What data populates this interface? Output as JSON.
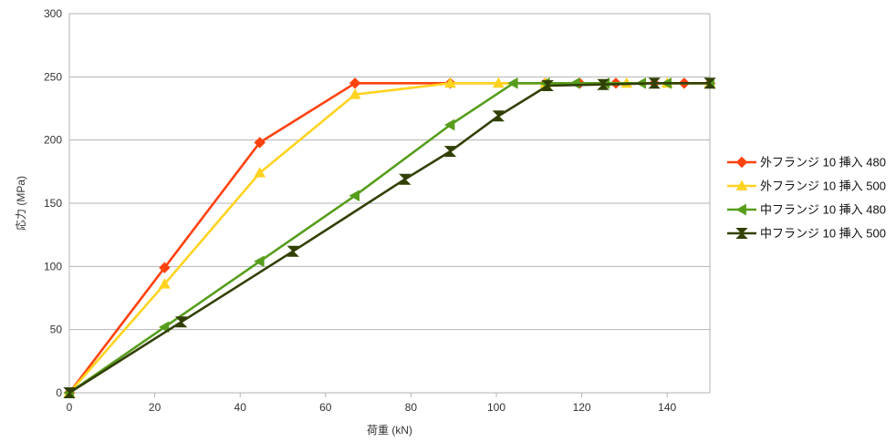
{
  "chart_data": {
    "type": "line",
    "xlabel": "荷重 (kN)",
    "ylabel": "応力 (MPa)",
    "xlim": [
      0,
      150
    ],
    "ylim": [
      0,
      300
    ],
    "x_ticks": [
      0,
      20,
      40,
      60,
      80,
      100,
      120,
      140
    ],
    "y_ticks": [
      0,
      50,
      100,
      150,
      200,
      250,
      300
    ],
    "grid": "horizontal",
    "legend_position": "right",
    "series": [
      {
        "name": "外フランジ 10 挿入 480",
        "color": "#ff420e",
        "marker": "diamond",
        "points": [
          [
            0,
            0
          ],
          [
            22.3,
            99
          ],
          [
            44.6,
            198
          ],
          [
            66.9,
            245
          ],
          [
            89.2,
            245
          ],
          [
            111.5,
            245
          ],
          [
            119.5,
            245
          ],
          [
            128,
            245
          ],
          [
            137,
            245
          ],
          [
            144,
            245
          ],
          [
            150,
            245
          ]
        ]
      },
      {
        "name": "外フランジ 10 挿入 500",
        "color": "#ffd320",
        "marker": "triangle-up",
        "points": [
          [
            0,
            0
          ],
          [
            22.3,
            86
          ],
          [
            44.6,
            174
          ],
          [
            66.9,
            236
          ],
          [
            89.2,
            245
          ],
          [
            100.5,
            245
          ],
          [
            111.5,
            245
          ],
          [
            130.5,
            245
          ],
          [
            140,
            245
          ],
          [
            150,
            245
          ]
        ]
      },
      {
        "name": "中フランジ 10 挿入 480",
        "color": "#579d1c",
        "marker": "triangle-left",
        "points": [
          [
            0,
            0
          ],
          [
            22.3,
            52
          ],
          [
            44.6,
            104
          ],
          [
            66.9,
            156
          ],
          [
            89.2,
            212
          ],
          [
            104,
            245
          ],
          [
            111.5,
            245
          ],
          [
            118.5,
            245
          ],
          [
            125.5,
            245
          ],
          [
            134,
            245
          ],
          [
            140,
            245
          ],
          [
            150,
            245
          ]
        ]
      },
      {
        "name": "中フランジ 10 挿入 500",
        "color": "#314004",
        "marker": "hourglass",
        "points": [
          [
            0,
            0
          ],
          [
            26.2,
            56
          ],
          [
            52.4,
            112
          ],
          [
            78.6,
            169
          ],
          [
            89.2,
            191
          ],
          [
            100.5,
            219
          ],
          [
            112,
            243
          ],
          [
            125,
            244
          ],
          [
            137,
            245
          ],
          [
            150,
            245
          ]
        ]
      }
    ]
  }
}
